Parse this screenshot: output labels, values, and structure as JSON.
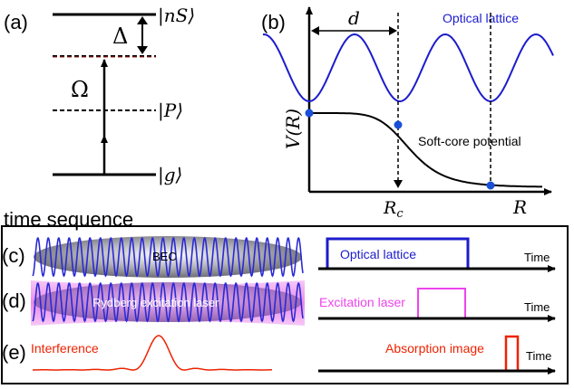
{
  "panel_a": {
    "label": "(a)",
    "state_ns": "|nS⟩",
    "state_p": "|P⟩",
    "state_g": "|g⟩",
    "detuning": "Δ",
    "rabi": "Ω"
  },
  "panel_b": {
    "label": "(b)",
    "distance": "d",
    "ylabel": "V(R)",
    "xlabel": "R",
    "rc_label": "R",
    "rc_sub": "c",
    "lattice_label": "Optical lattice",
    "potential_label": "Soft-core potential"
  },
  "time_sequence": {
    "title": "time sequence",
    "c_label": "(c)",
    "d_label": "(d)",
    "e_label": "(e)",
    "bec": "BEC",
    "rydberg": "Rydberg excitation laser",
    "interference": "Interference",
    "lattice_pulse": "Optical lattice",
    "excitation_pulse": "Excitation laser",
    "absorption_pulse": "Absorption image",
    "time_label": "Time"
  },
  "colors": {
    "lattice": "#1c1ccc",
    "excitation": "#ee44ee",
    "absorption": "#ee2200",
    "ground_dashed": "#aa2222",
    "dot": "#1a4fd8"
  }
}
